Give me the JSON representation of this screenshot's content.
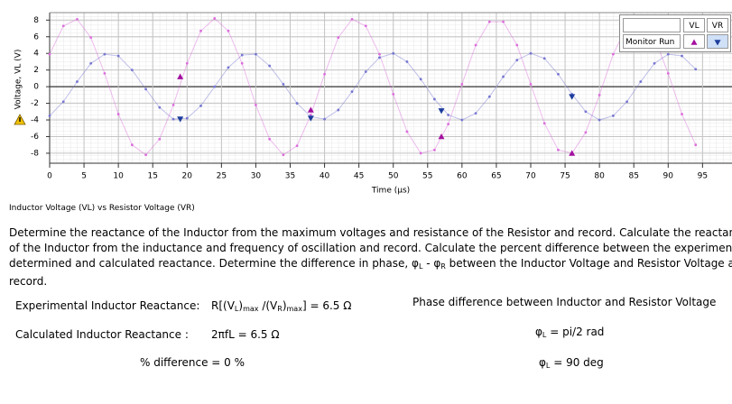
{
  "chart_data": {
    "type": "line",
    "x": [
      0,
      2,
      4,
      6,
      8,
      10,
      12,
      14,
      16,
      18,
      20,
      22,
      24,
      26,
      28,
      30,
      32,
      34,
      36,
      38,
      40,
      42,
      44,
      46,
      48,
      50,
      52,
      54,
      56,
      58,
      60,
      62,
      64,
      66,
      68,
      70,
      72,
      74,
      76,
      78,
      80,
      82,
      84,
      86,
      88,
      90,
      92,
      94
    ],
    "series": [
      {
        "name": "VL",
        "color": "#dc6ddc",
        "values": [
          3.9,
          7.3,
          8.1,
          5.9,
          1.6,
          -3.3,
          -7.0,
          -8.2,
          -6.3,
          -2.2,
          2.8,
          6.7,
          8.2,
          6.7,
          2.8,
          -2.2,
          -6.3,
          -8.2,
          -7.1,
          -3.4,
          1.5,
          5.9,
          8.1,
          7.3,
          3.9,
          -0.9,
          -5.4,
          -8.0,
          -7.6,
          -4.5,
          0.3,
          5.0,
          7.8,
          7.8,
          5.0,
          0.3,
          -4.4,
          -7.6,
          -8.0,
          -5.5,
          -1.0,
          3.9,
          7.3,
          8.1,
          5.9,
          1.6,
          -3.3,
          -7.0
        ]
      },
      {
        "name": "VR",
        "color": "#7676d2",
        "values": [
          -3.5,
          -1.8,
          0.6,
          2.8,
          3.9,
          3.7,
          2.0,
          -0.3,
          -2.5,
          -3.9,
          -3.8,
          -2.3,
          0.0,
          2.3,
          3.8,
          3.9,
          2.5,
          0.3,
          -2.0,
          -3.6,
          -3.9,
          -2.8,
          -0.6,
          1.8,
          3.5,
          4.0,
          3.0,
          0.9,
          -1.5,
          -3.4,
          -4.0,
          -3.2,
          -1.2,
          1.2,
          3.2,
          4.0,
          3.4,
          1.5,
          -0.9,
          -3.0,
          -4.0,
          -3.5,
          -1.8,
          0.6,
          2.8,
          3.9,
          3.7,
          2.1
        ]
      }
    ],
    "run_markers": {
      "x": [
        19,
        38,
        57,
        76
      ],
      "series": [
        {
          "marker": "triangle-up",
          "color": "#a3109f",
          "values": [
            1.2,
            -2.8,
            -6.0,
            -8.0
          ]
        },
        {
          "marker": "triangle-down",
          "color": "#1c3d9c",
          "values": [
            -3.9,
            -3.8,
            -2.9,
            -1.2
          ]
        }
      ]
    },
    "xlim": [
      0,
      98.5
    ],
    "ylim": [
      -9.2,
      8.9
    ],
    "xticks": [
      0,
      5,
      10,
      15,
      20,
      25,
      30,
      35,
      40,
      45,
      50,
      55,
      60,
      65,
      70,
      75,
      80,
      85,
      90,
      95
    ],
    "yticks": [
      -8,
      -6,
      -4,
      -2,
      0,
      2,
      4,
      6,
      8
    ],
    "xlabel": "Time (µs)",
    "ylabel": "Voltage, VL (V)",
    "grid": true,
    "legend": {
      "position": "top-right",
      "row_label": "Monitor Run"
    }
  },
  "caption": "Inductor Voltage (VL) vs Resistor Voltage (VR)",
  "instructions": [
    "Determine the reactance of the Inductor from the maximum voltages and resistance of the Resistor and record. Calculate the reactance of the Inductor from the inductance and frequency of oscillation and record.  Calculate the percent difference between the experimentally determined and calculated reactance.  Determine the difference in phase, φ",
    "L",
    " - φ",
    "R",
    " between the Inductor Voltage and Resistor Voltage and record."
  ],
  "results": {
    "experimental_label": "Experimental Inductor Reactance:",
    "experimental_formula": [
      "R[(V",
      "L",
      ")",
      "max",
      " /(V",
      "R",
      ")",
      "max",
      "] = 6.5 Ω"
    ],
    "calculated_label": "Calculated Inductor Reactance :",
    "calculated_formula": "2πfL = 6.5 Ω",
    "percent_difference": "% difference = 0 %",
    "phase_title": "Phase difference between Inductor and Resistor Voltage",
    "phase_rad": [
      "φ",
      "L",
      " = pi/2 rad"
    ],
    "phase_deg": [
      "φ",
      "L",
      " = 90 deg"
    ]
  }
}
